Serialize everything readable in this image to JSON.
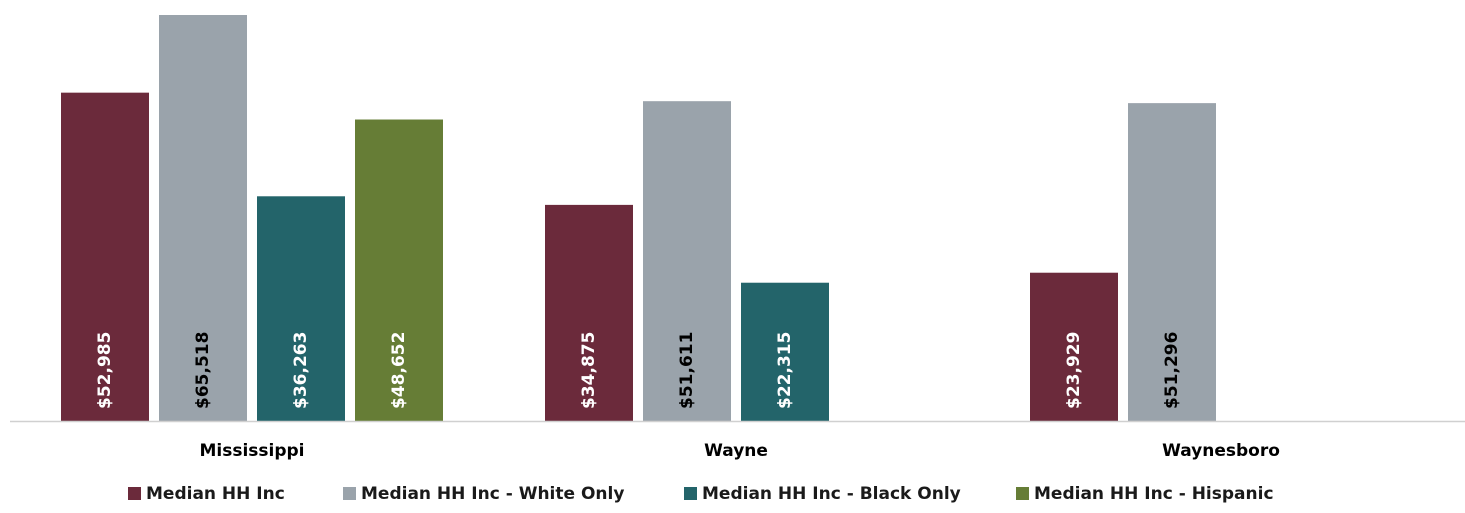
{
  "chart_data": {
    "type": "bar",
    "title": "",
    "xlabel": "",
    "ylabel": "",
    "categories": [
      "Mississippi",
      "Wayne",
      "Waynesboro"
    ],
    "series": [
      {
        "name": "Median HH Inc",
        "color": "#6b2a3b",
        "label_color": "#ffffff",
        "values": [
          52985,
          34875,
          23929
        ],
        "labels": [
          "$52,985",
          "$34,875",
          "$23,929"
        ]
      },
      {
        "name": "Median HH Inc - White Only",
        "color": "#9aa3ab",
        "label_color": "#000000",
        "values": [
          65518,
          51611,
          51296
        ],
        "labels": [
          "$65,518",
          "$51,611",
          "$51,296"
        ]
      },
      {
        "name": "Median HH Inc - Black Only",
        "color": "#23646a",
        "label_color": "#ffffff",
        "values": [
          36263,
          22315,
          null
        ],
        "labels": [
          "$36,263",
          "$22,315",
          ""
        ]
      },
      {
        "name": "Median HH Inc - Hispanic",
        "color": "#667d36",
        "label_color": "#ffffff",
        "values": [
          48652,
          null,
          null
        ],
        "labels": [
          "$48,652",
          "",
          ""
        ]
      }
    ],
    "ylim": [
      0,
      65518
    ],
    "grid": false,
    "legend": "bottom",
    "axis_color": "#d0d0d0"
  }
}
